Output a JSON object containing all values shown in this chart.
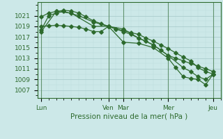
{
  "background_color": "#cce8e8",
  "grid_major_color": "#aacccc",
  "grid_minor_color": "#bbdddd",
  "line_color": "#2d6a2d",
  "xlabel": "Pression niveau de la mer( hPa )",
  "yticks": [
    1007,
    1009,
    1011,
    1013,
    1015,
    1017,
    1019,
    1021
  ],
  "ylim": [
    1005.5,
    1023.5
  ],
  "xtick_labels": [
    "Lun",
    "Ven",
    "Mar",
    "Mer",
    "Jeu"
  ],
  "xtick_positions": [
    0,
    9,
    11,
    17,
    23
  ],
  "xlim": [
    -0.5,
    24
  ],
  "series1_x": [
    0,
    1,
    2,
    3,
    4,
    5,
    6,
    7,
    8,
    9,
    10,
    11,
    12,
    13,
    14,
    15,
    16,
    17,
    18,
    19,
    20,
    21,
    22,
    23
  ],
  "series1_y": [
    1019.0,
    1019.1,
    1019.2,
    1019.1,
    1019.0,
    1018.8,
    1018.5,
    1018.0,
    1018.0,
    1019.0,
    1018.5,
    1018.2,
    1017.8,
    1017.5,
    1016.8,
    1016.2,
    1015.5,
    1014.8,
    1014.0,
    1013.2,
    1012.5,
    1011.2,
    1010.5,
    1010.0
  ],
  "series2_x": [
    0,
    1,
    2,
    3,
    4,
    5,
    6,
    7,
    8,
    9,
    10,
    11,
    12,
    13,
    14,
    15,
    16,
    17,
    18,
    19,
    20,
    21,
    22,
    23
  ],
  "series2_y": [
    1020.8,
    1021.5,
    1021.8,
    1022.0,
    1021.9,
    1021.5,
    1020.8,
    1020.0,
    1019.5,
    1019.0,
    1018.5,
    1018.0,
    1017.5,
    1016.8,
    1016.2,
    1015.5,
    1014.5,
    1013.5,
    1013.0,
    1012.5,
    1012.0,
    1011.5,
    1011.0,
    1010.5
  ],
  "series3_x": [
    0,
    1,
    2,
    3,
    5,
    7,
    9,
    11,
    13,
    15,
    17,
    19,
    20,
    21,
    22,
    23
  ],
  "series3_y": [
    1018.3,
    1021.0,
    1021.5,
    1021.8,
    1021.0,
    1019.8,
    1019.0,
    1018.5,
    1016.8,
    1015.5,
    1013.5,
    1011.2,
    1010.5,
    1009.5,
    1009.0,
    1010.0
  ],
  "series4_x": [
    0,
    2,
    4,
    7,
    9,
    11,
    13,
    15,
    17,
    18,
    19,
    20,
    21,
    22,
    23
  ],
  "series4_y": [
    1018.0,
    1021.8,
    1021.5,
    1019.0,
    1019.0,
    1016.0,
    1015.8,
    1015.0,
    1013.0,
    1011.2,
    1009.5,
    1009.2,
    1009.0,
    1008.0,
    1010.0
  ],
  "vline_positions": [
    0,
    9,
    11,
    17,
    23
  ],
  "vline_color": "#2d6a2d"
}
